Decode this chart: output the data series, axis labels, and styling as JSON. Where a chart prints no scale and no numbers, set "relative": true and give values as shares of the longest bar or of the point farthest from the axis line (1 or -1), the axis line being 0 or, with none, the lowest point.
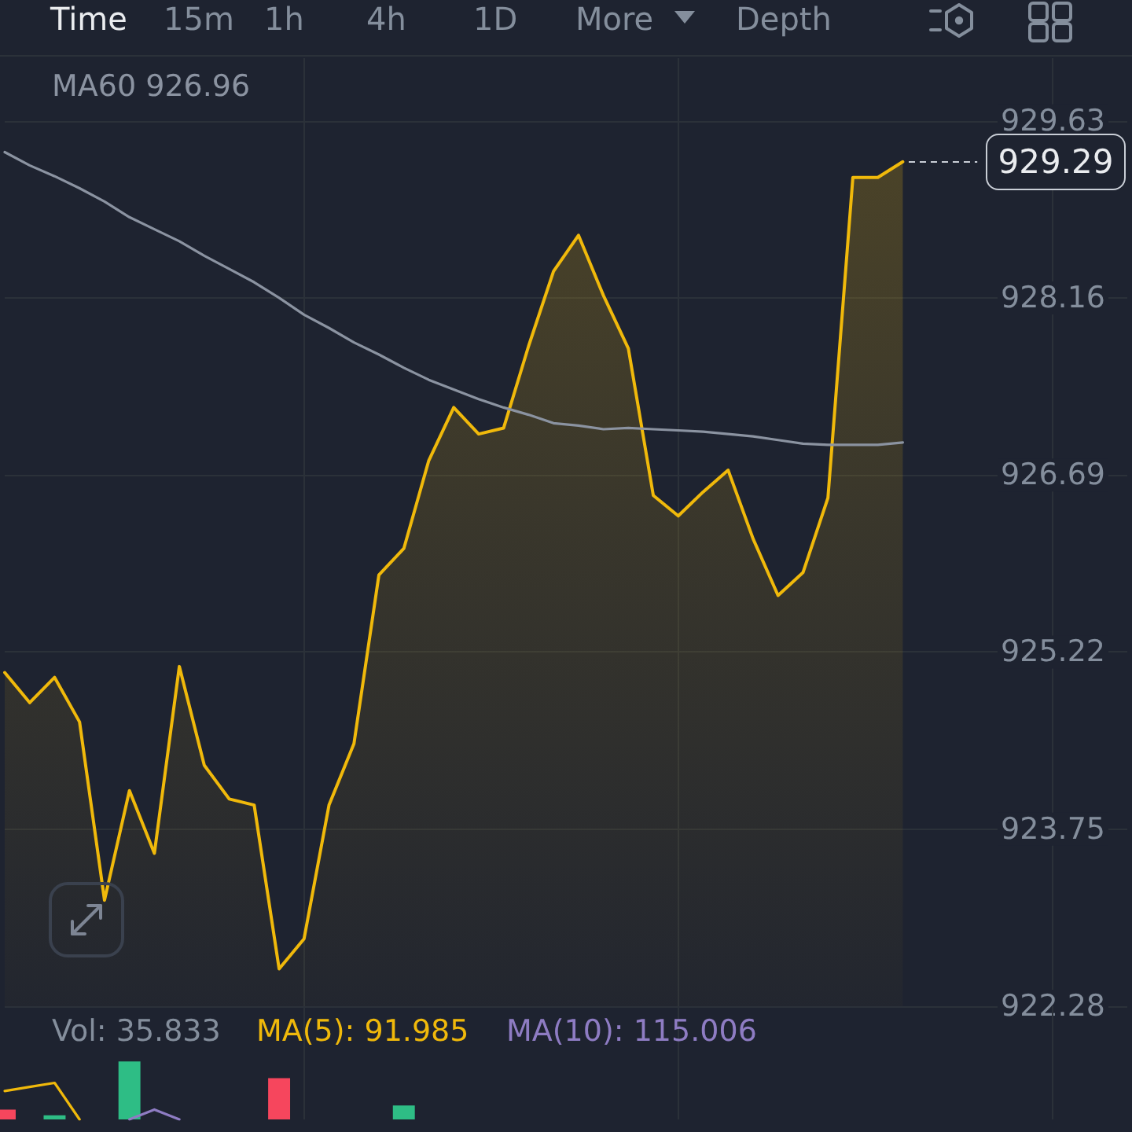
{
  "chart_data": [
    {
      "type": "area",
      "annotations": [
        "Time",
        "15m",
        "1h",
        "4h",
        "1D",
        "More",
        "Depth",
        "929.29"
      ],
      "categories": [
        null,
        null,
        null,
        null,
        null,
        null,
        null,
        null,
        null,
        null,
        null,
        null,
        null,
        null,
        null,
        null,
        null,
        null,
        null,
        null,
        null,
        null,
        null,
        null,
        null,
        null,
        null,
        null,
        null,
        null,
        null,
        null,
        null,
        null,
        null,
        null,
        null
      ],
      "series": [
        {
          "color": "#f0b90b",
          "values": [
            925.05,
            924.8,
            925.01,
            924.64,
            923.16,
            924.07,
            923.55,
            925.1,
            924.28,
            924.0,
            923.95,
            922.59,
            922.84,
            923.95,
            924.46,
            925.86,
            926.08,
            926.81,
            927.25,
            927.03,
            927.08,
            927.76,
            928.38,
            928.68,
            928.18,
            927.74,
            926.52,
            926.35,
            926.55,
            926.73,
            926.16,
            925.69,
            925.88,
            926.5,
            929.16,
            929.16,
            929.29
          ]
        },
        {
          "type": "line",
          "name": "MA60 926.96",
          "color": "#8b93a1",
          "values": [
            929.37,
            929.26,
            929.17,
            929.07,
            928.96,
            928.83,
            928.73,
            928.63,
            928.51,
            928.4,
            928.29,
            928.16,
            928.02,
            927.91,
            927.79,
            927.69,
            927.58,
            927.48,
            927.4,
            927.32,
            927.25,
            927.19,
            927.12,
            927.1,
            927.07,
            927.08,
            927.07,
            927.06,
            927.05,
            927.03,
            927.01,
            926.98,
            926.95,
            926.94,
            926.94,
            926.94,
            926.96
          ]
        }
      ],
      "ylim": [
        922.28,
        930.15
      ],
      "yticks": [
        922.28,
        923.75,
        925.22,
        926.69,
        928.16,
        929.63
      ],
      "grid": true,
      "legend": "top left",
      "marker": "none"
    },
    {
      "type": "bar",
      "relative": true,
      "annotations": [
        "Vol: 35.833",
        "MA(5): 91.985",
        "MA(10): 115.006"
      ],
      "categories": [
        null,
        null,
        null,
        null,
        null,
        null,
        null,
        null,
        null,
        null,
        null,
        null,
        null,
        null,
        null,
        null,
        null,
        null,
        null,
        null,
        null,
        null,
        null,
        null,
        null,
        null,
        null,
        null,
        null,
        null,
        null,
        null,
        null,
        null,
        null,
        null,
        null
      ],
      "series": [
        {
          "values": [
            0.17,
            null,
            0.07,
            null,
            null,
            1,
            null,
            null,
            null,
            null,
            null,
            0.71,
            null,
            null,
            null,
            null,
            0.24,
            null,
            null,
            null,
            null,
            null,
            null,
            null,
            null,
            null,
            null,
            null,
            null,
            null,
            null,
            null,
            null,
            null,
            null,
            null,
            null
          ],
          "colors": [
            "#f6465d",
            null,
            "#2ebd85",
            null,
            null,
            "#2ebd85",
            null,
            null,
            null,
            null,
            null,
            "#f6465d",
            null,
            null,
            null,
            null,
            "#2ebd85",
            null,
            null,
            null,
            null,
            null,
            null,
            null,
            null,
            null,
            null,
            null,
            null,
            null,
            null,
            null,
            null,
            null,
            null,
            null,
            null
          ]
        },
        {
          "type": "line",
          "color": "#f0b90b",
          "values": [
            0.49,
            0.56,
            0.63,
            0,
            null,
            null,
            null,
            null,
            null,
            null,
            null,
            null,
            null,
            null,
            null,
            null,
            null,
            null,
            null,
            null,
            null,
            null,
            null,
            null,
            null,
            null,
            null,
            null,
            null,
            null,
            null,
            null,
            null,
            null,
            null,
            null,
            null
          ]
        },
        {
          "type": "line",
          "color": "#8e7cc3",
          "values": [
            null,
            null,
            null,
            null,
            null,
            0,
            0.17,
            0,
            null,
            null,
            null,
            null,
            null,
            null,
            null,
            null,
            null,
            null,
            null,
            null,
            null,
            null,
            null,
            null,
            null,
            null,
            null,
            null,
            null,
            null,
            null,
            null,
            null,
            null,
            null,
            null,
            null
          ]
        }
      ],
      "grid": "x",
      "marker": "none"
    }
  ]
}
